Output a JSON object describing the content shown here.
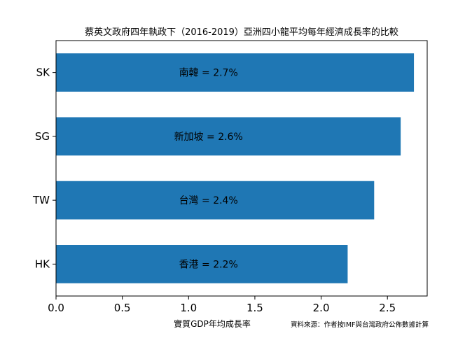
{
  "chart_data": {
    "type": "bar",
    "orientation": "horizontal",
    "title": "蔡英文政府四年執政下（2016-2019）亞洲四小龍平均每年經濟成長率的比較",
    "xlabel": "實質GDP年均成長率",
    "ylabel": "",
    "categories": [
      "HK",
      "TW",
      "SG",
      "SK"
    ],
    "values": [
      2.2,
      2.4,
      2.6,
      2.7
    ],
    "data_labels": [
      "香港 = 2.2%",
      "台灣 = 2.4%",
      "新加坡 = 2.6%",
      "南韓 = 2.7%"
    ],
    "xlim": [
      0,
      2.8
    ],
    "xticks": [
      0.0,
      0.5,
      1.0,
      1.5,
      2.0,
      2.5
    ],
    "xtick_labels": [
      "0.0",
      "0.5",
      "1.0",
      "1.5",
      "2.0",
      "2.5"
    ],
    "grid": false,
    "bar_color": "#1f77b4",
    "source_note": "資料來源：作者按IMF與台灣政府公佈數據計算"
  }
}
